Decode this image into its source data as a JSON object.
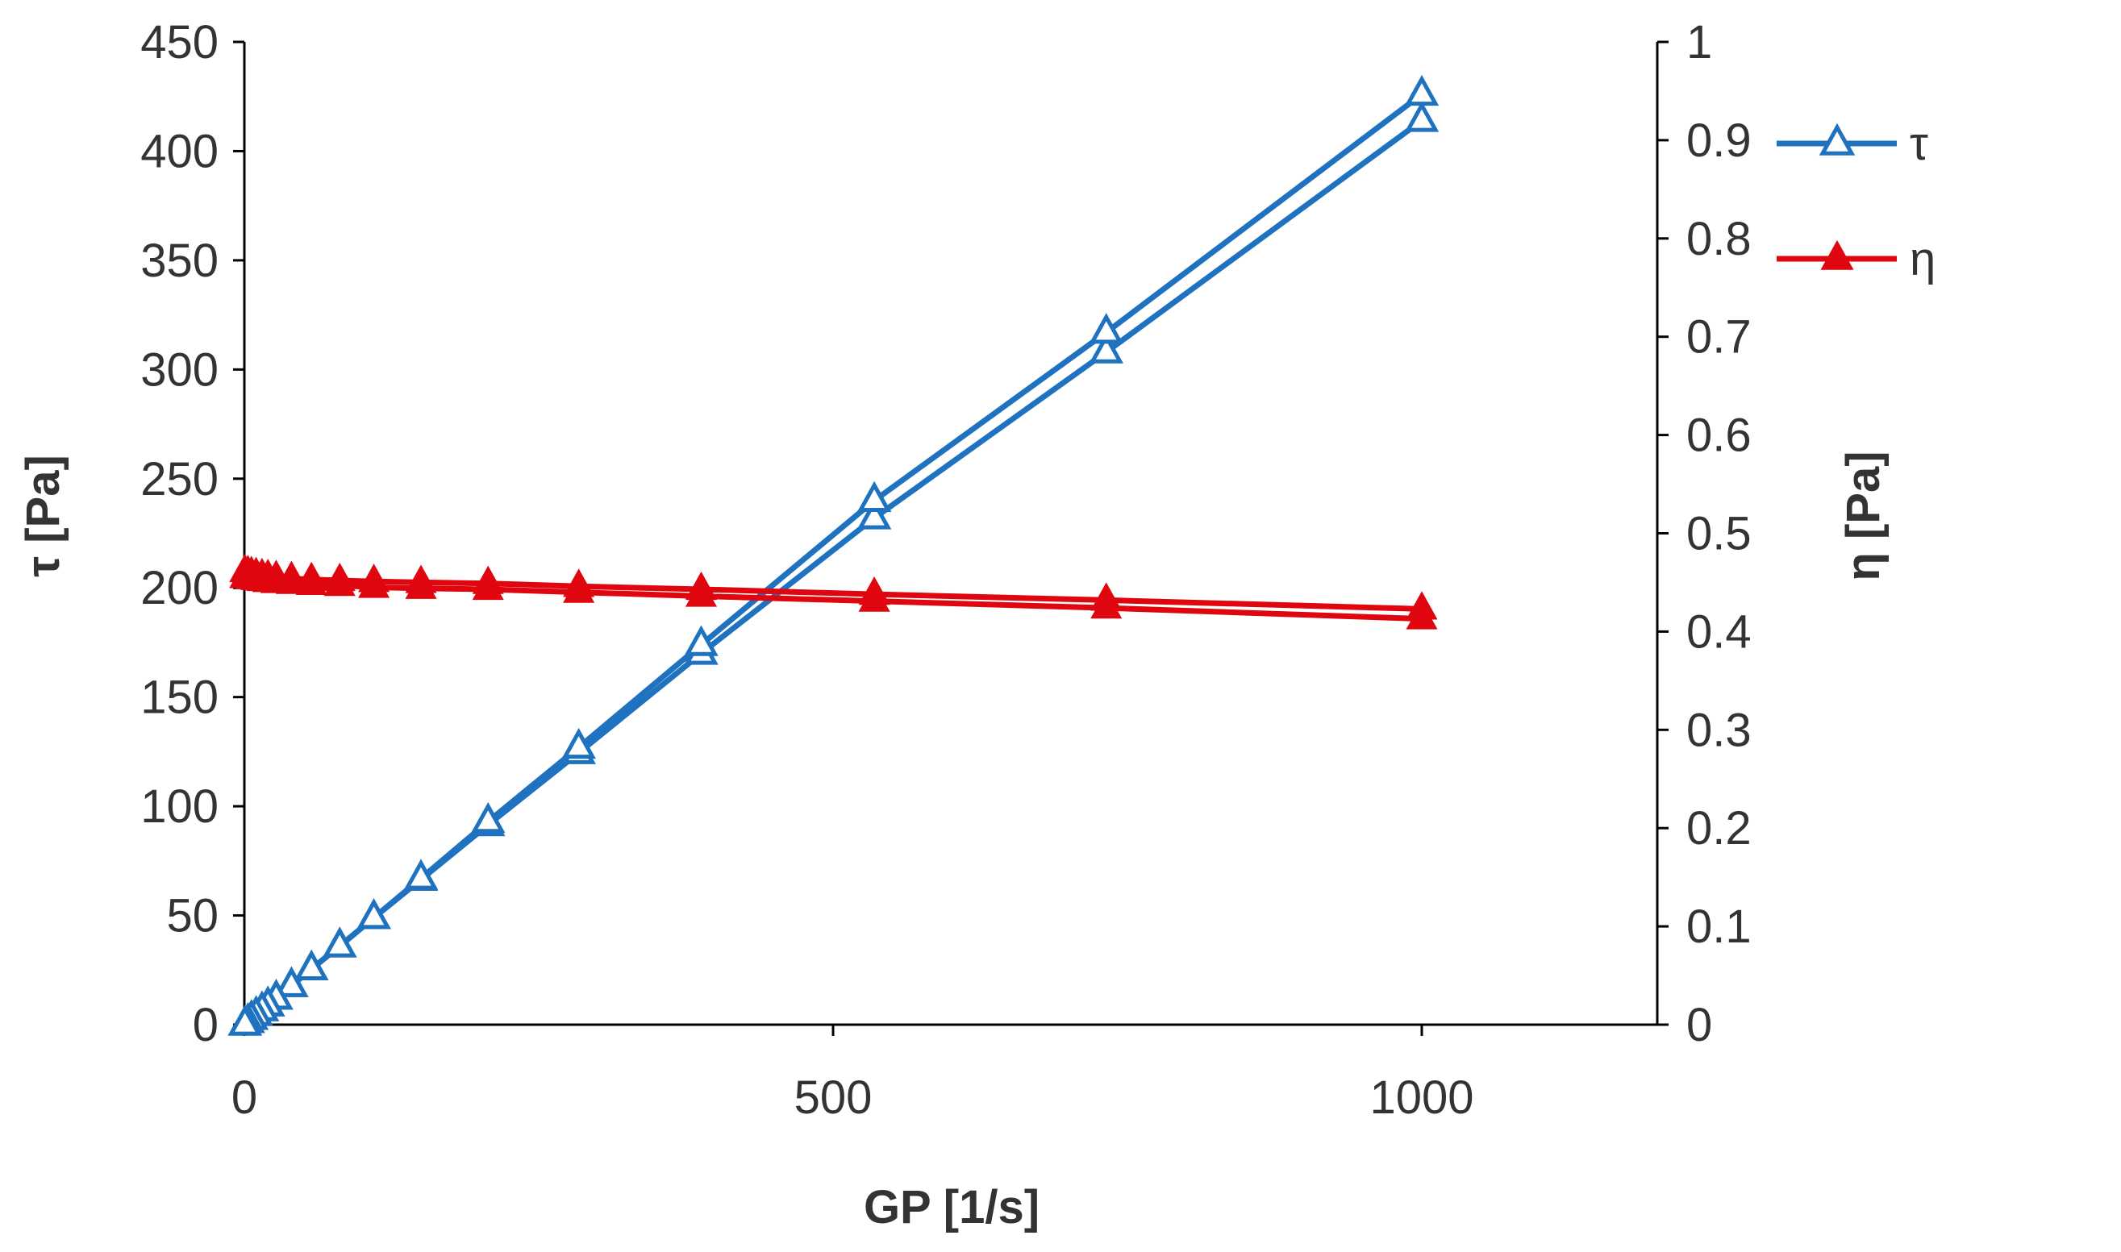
{
  "chart_data": {
    "type": "line",
    "title": "",
    "xlabel": "GP [1/s]",
    "ylabel_left": "τ [Pa]",
    "ylabel_right": "η [Pa]",
    "xlim": [
      0,
      1200
    ],
    "ylim_left": [
      0,
      450
    ],
    "ylim_right": [
      0,
      1
    ],
    "x_ticks": [
      "0",
      "500",
      "1000"
    ],
    "y_left_ticks": [
      "0",
      "50",
      "100",
      "150",
      "200",
      "250",
      "300",
      "350",
      "400",
      "450"
    ],
    "y_right_ticks": [
      "0",
      "0.1",
      "0.2",
      "0.3",
      "0.4",
      "0.5",
      "0.6",
      "0.7",
      "0.8",
      "0.9",
      "1"
    ],
    "grid": false,
    "legend_position": "right",
    "series": [
      {
        "name": "τ",
        "axis": "left",
        "color": "#1f72bf",
        "marker": "open-triangle",
        "branch": "up",
        "x": [
          0.5,
          3,
          6,
          10,
          15,
          20,
          27,
          40,
          57,
          81,
          110,
          150,
          207,
          284,
          388,
          535,
          732,
          1000
        ],
        "y": [
          0.2,
          1.4,
          2.8,
          4.6,
          6.8,
          9.0,
          12.1,
          17.8,
          25.5,
          36.0,
          49.0,
          66.5,
          91.5,
          124.5,
          170.0,
          232.0,
          308.0,
          414.0
        ]
      },
      {
        "name": "τ",
        "axis": "left",
        "color": "#1f72bf",
        "marker": "open-triangle",
        "branch": "down",
        "x": [
          1000,
          732,
          535,
          388,
          284,
          207,
          150,
          110,
          81,
          57,
          40,
          27,
          20,
          15,
          10,
          6,
          3,
          0.5
        ],
        "y": [
          426.0,
          317.0,
          240.0,
          174.0,
          127.0,
          93.0,
          67.0,
          49.0,
          36.0,
          25.5,
          17.8,
          12.1,
          9.0,
          6.8,
          4.6,
          2.8,
          1.4,
          0.2
        ]
      },
      {
        "name": "η",
        "axis": "right",
        "color": "#e0060f",
        "marker": "filled-triangle",
        "branch": "up",
        "x": [
          0.5,
          3,
          6,
          10,
          15,
          20,
          27,
          40,
          57,
          81,
          110,
          150,
          207,
          284,
          388,
          535,
          732,
          1000
        ],
        "y": [
          0.455,
          0.455,
          0.454,
          0.453,
          0.452,
          0.451,
          0.45,
          0.449,
          0.448,
          0.447,
          0.445,
          0.444,
          0.443,
          0.44,
          0.436,
          0.431,
          0.424,
          0.413
        ]
      },
      {
        "name": "η",
        "axis": "right",
        "color": "#e0060f",
        "marker": "filled-triangle",
        "branch": "down",
        "x": [
          1000,
          732,
          535,
          388,
          284,
          207,
          150,
          110,
          81,
          57,
          40,
          27,
          20,
          15,
          10,
          6,
          3,
          0.5
        ],
        "y": [
          0.423,
          0.432,
          0.438,
          0.443,
          0.446,
          0.449,
          0.45,
          0.451,
          0.452,
          0.453,
          0.454,
          0.455,
          0.456,
          0.457,
          0.458,
          0.459,
          0.46,
          0.461
        ]
      }
    ],
    "legend": [
      {
        "label": "τ",
        "color": "#1f72bf",
        "marker": "open-triangle"
      },
      {
        "label": "η",
        "color": "#e0060f",
        "marker": "filled-triangle"
      }
    ]
  }
}
